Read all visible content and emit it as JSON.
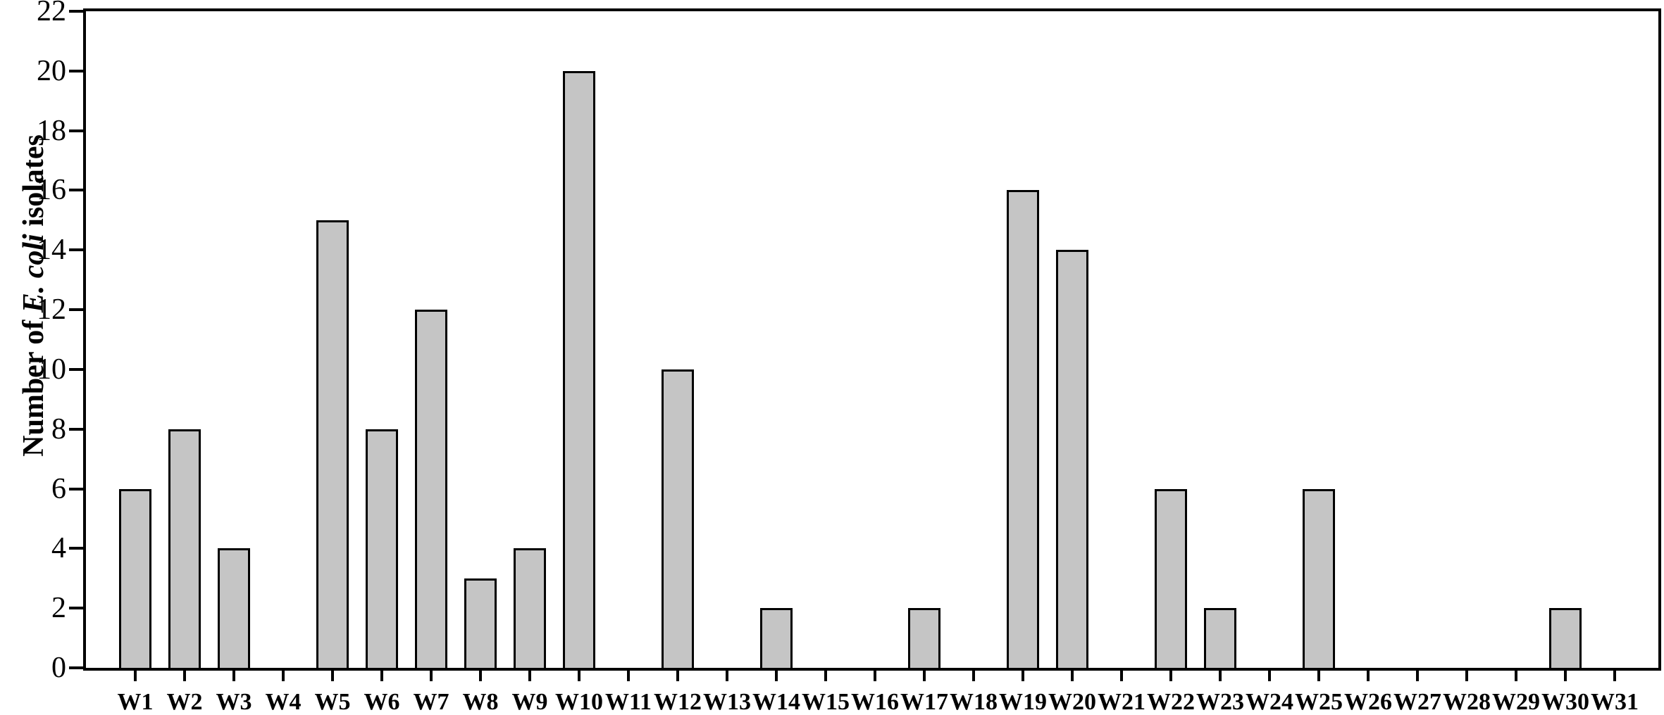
{
  "chart_data": {
    "type": "bar",
    "title": "",
    "categories": [
      "W1",
      "W2",
      "W3",
      "W4",
      "W5",
      "W6",
      "W7",
      "W8",
      "W9",
      "W10",
      "W11",
      "W12",
      "W13",
      "W14",
      "W15",
      "W16",
      "W17",
      "W18",
      "W19",
      "W20",
      "W21",
      "W22",
      "W23",
      "W24",
      "W25",
      "W26",
      "W27",
      "W28",
      "W29",
      "W30",
      "W31"
    ],
    "values": [
      6,
      8,
      4,
      0,
      15,
      8,
      12,
      3,
      4,
      20,
      0,
      10,
      0,
      2,
      0,
      0,
      2,
      0,
      16,
      14,
      0,
      6,
      2,
      0,
      6,
      0,
      0,
      0,
      0,
      2,
      0
    ],
    "xlabel": "",
    "ylabel": "Number of E. coli isolates",
    "ylabel_parts": {
      "prefix": "Number of ",
      "italic": "E. coli",
      "suffix": " isolates"
    },
    "ylim": [
      0,
      22
    ],
    "yticks": [
      0,
      2,
      4,
      6,
      8,
      10,
      12,
      14,
      16,
      18,
      20,
      22
    ],
    "grid": false,
    "legend_position": "none",
    "bar_fill_color": "#c5c5c5",
    "bar_border_color": "#000000",
    "axis_color": "#000000",
    "background_color": "#ffffff"
  }
}
